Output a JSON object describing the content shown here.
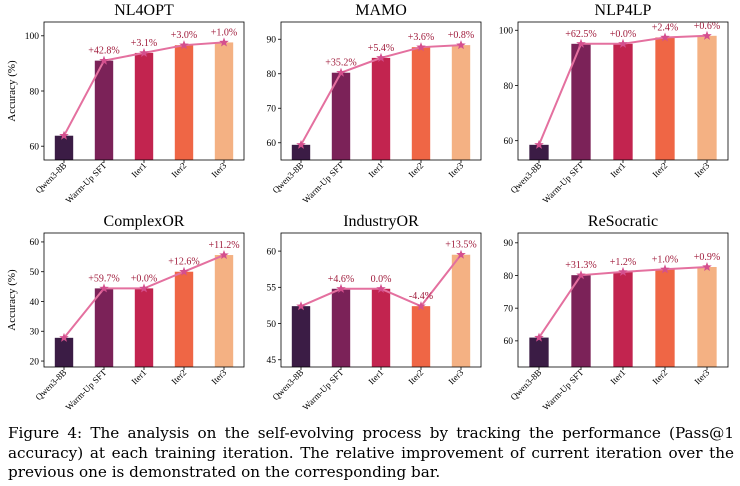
{
  "chart_data": [
    {
      "type": "bar",
      "title": "NL4OPT",
      "categories": [
        "Qwen3-8B",
        "Warm-Up SFT",
        "Iter1",
        "Iter2",
        "Iter3"
      ],
      "values": [
        63.8,
        91.0,
        93.8,
        96.6,
        97.6
      ],
      "annotations": [
        "",
        "+42.8%",
        "+3.1%",
        "+3.0%",
        "+1.0%"
      ],
      "ylabel": "Accuracy (%)",
      "ylim": [
        55,
        105
      ],
      "yticks": [
        60,
        80,
        100
      ]
    },
    {
      "type": "bar",
      "title": "MAMO",
      "categories": [
        "Qwen3-8B",
        "Warm-Up SFT",
        "Iter1",
        "Iter2",
        "Iter3"
      ],
      "values": [
        59.4,
        80.3,
        84.6,
        87.7,
        88.3
      ],
      "annotations": [
        "",
        "+35.2%",
        "+5.4%",
        "+3.6%",
        "+0.8%"
      ],
      "ylabel": "",
      "ylim": [
        55,
        95
      ],
      "yticks": [
        60,
        70,
        80,
        90
      ]
    },
    {
      "type": "bar",
      "title": "NLP4LP",
      "categories": [
        "Qwen3-8B",
        "Warm-Up SFT",
        "Iter1",
        "Iter2",
        "Iter3"
      ],
      "values": [
        58.5,
        95.1,
        95.1,
        97.4,
        98.0
      ],
      "annotations": [
        "",
        "+62.5%",
        "+0.0%",
        "+2.4%",
        "+0.6%"
      ],
      "ylabel": "",
      "ylim": [
        53,
        103
      ],
      "yticks": [
        60,
        80,
        100
      ]
    },
    {
      "type": "bar",
      "title": "ComplexOR",
      "categories": [
        "Qwen3-8B",
        "Warm-Up SFT",
        "Iter1",
        "Iter2",
        "Iter3"
      ],
      "values": [
        27.8,
        44.4,
        44.4,
        50.0,
        55.6
      ],
      "annotations": [
        "",
        "+59.7%",
        "+0.0%",
        "+12.6%",
        "+11.2%"
      ],
      "ylabel": "Accuracy (%)",
      "ylim": [
        18,
        63
      ],
      "yticks": [
        20,
        30,
        40,
        50,
        60
      ]
    },
    {
      "type": "bar",
      "title": "IndustryOR",
      "categories": [
        "Qwen3-8B",
        "Warm-Up SFT",
        "Iter1",
        "Iter2",
        "Iter3"
      ],
      "values": [
        52.4,
        54.8,
        54.8,
        52.4,
        59.5
      ],
      "annotations": [
        "",
        "+4.6%",
        "0.0%",
        "-4.4%",
        "+13.5%"
      ],
      "ylabel": "",
      "ylim": [
        44,
        62.5
      ],
      "yticks": [
        45,
        50,
        55,
        60
      ]
    },
    {
      "type": "bar",
      "title": "ReSocratic",
      "categories": [
        "Qwen3-8B",
        "Warm-Up SFT",
        "Iter1",
        "Iter2",
        "Iter3"
      ],
      "values": [
        61.0,
        80.1,
        81.1,
        81.9,
        82.6
      ],
      "annotations": [
        "",
        "+31.3%",
        "+1.2%",
        "+1.0%",
        "+0.9%"
      ],
      "ylabel": "",
      "ylim": [
        52,
        93
      ],
      "yticks": [
        60,
        70,
        80,
        90
      ]
    }
  ],
  "colors": {
    "bars": [
      "#3b1c45",
      "#7b2258",
      "#c2244f",
      "#ef6645",
      "#f4b183"
    ],
    "line": "#e4709f",
    "marker": "#d44f8e",
    "annotation": "#a01c3c"
  },
  "caption": "Figure 4: The analysis on the self-evolving process by tracking the performance (Pass@1 accuracy) at each training iteration. The relative improvement of current iteration over the previous one is demonstrated on the corresponding bar."
}
